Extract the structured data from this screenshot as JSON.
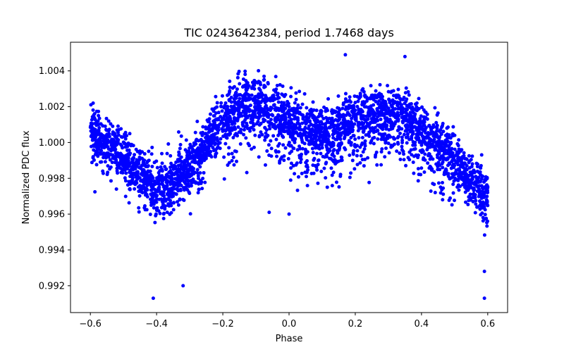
{
  "chart_data": {
    "type": "scatter",
    "title": "TIC 0243642384, period 1.7468 days",
    "xlabel": "Phase",
    "ylabel": "Normalized PDC flux",
    "xlim": [
      -0.66,
      0.66
    ],
    "ylim": [
      0.9905,
      1.0056
    ],
    "xticks": [
      -0.6,
      -0.4,
      -0.2,
      0.0,
      0.2,
      0.4,
      0.6
    ],
    "xtick_labels": [
      "−0.6",
      "−0.4",
      "−0.2",
      "0.0",
      "0.2",
      "0.4",
      "0.6"
    ],
    "yticks": [
      0.992,
      0.994,
      0.996,
      0.998,
      1.0,
      1.002,
      1.004
    ],
    "ytick_labels": [
      "0.992",
      "0.994",
      "0.996",
      "0.998",
      "1.000",
      "1.002",
      "1.004"
    ],
    "grid": false,
    "marker_color": "#0000ff",
    "marker": "filled circle",
    "series": [
      {
        "name": "PDC flux",
        "x_range": [
          -0.6,
          0.6
        ],
        "approx_points": 3500,
        "trend": {
          "phase": [
            -0.6,
            -0.55,
            -0.5,
            -0.45,
            -0.4,
            -0.35,
            -0.3,
            -0.25,
            -0.2,
            -0.15,
            -0.1,
            -0.05,
            0.0,
            0.05,
            0.1,
            0.15,
            0.2,
            0.25,
            0.3,
            0.35,
            0.4,
            0.45,
            0.5,
            0.55,
            0.6
          ],
          "flux": [
            1.0005,
            1.0,
            0.9992,
            0.9982,
            0.9974,
            0.9978,
            0.9985,
            0.9998,
            1.0012,
            1.002,
            1.0022,
            1.0018,
            1.001,
            1.0008,
            1.0006,
            1.0008,
            1.0013,
            1.0016,
            1.0016,
            1.0013,
            1.0008,
            1.0,
            0.999,
            0.9978,
            0.9968
          ]
        },
        "scatter_spread": 0.0012,
        "extremes": [
          {
            "x": -0.41,
            "y": 0.9913
          },
          {
            "x": -0.32,
            "y": 0.992
          },
          {
            "x": 0.17,
            "y": 1.0049
          },
          {
            "x": 0.35,
            "y": 1.0048
          },
          {
            "x": 0.59,
            "y": 0.9913
          },
          {
            "x": 0.59,
            "y": 0.9928
          },
          {
            "x": -0.06,
            "y": 0.9961
          },
          {
            "x": 0.0,
            "y": 0.996
          }
        ]
      }
    ]
  }
}
